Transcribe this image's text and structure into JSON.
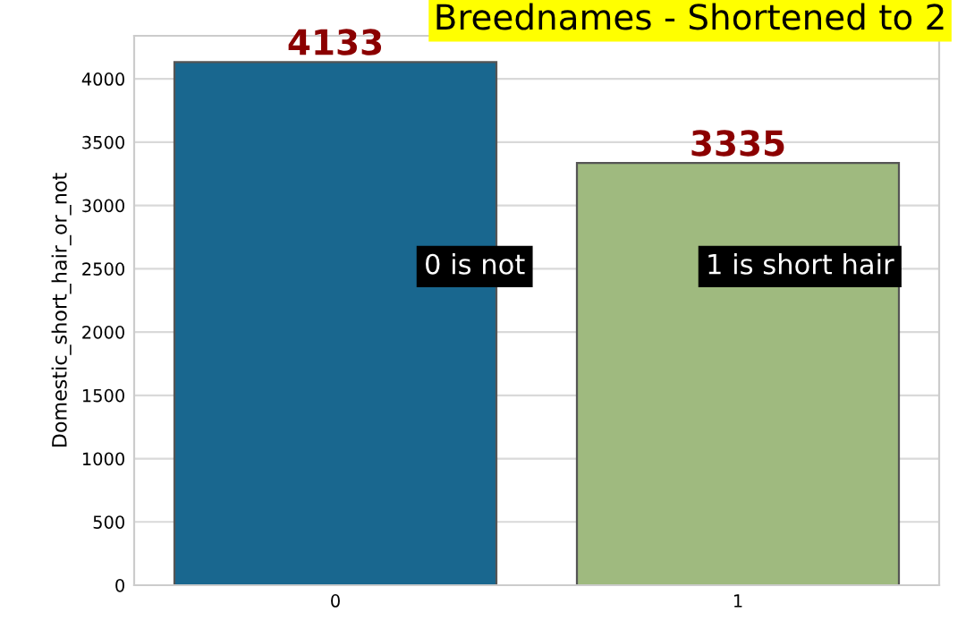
{
  "chart_data": {
    "type": "bar",
    "title": "Breednames - Shortened to 2",
    "ylabel": "Domestic_short_hair_or_not",
    "categories": [
      "0",
      "1"
    ],
    "values": [
      4133,
      3335
    ],
    "colors": [
      "#19678f",
      "#9fba7f"
    ],
    "ylim": [
      0,
      4340
    ],
    "yticks": [
      0,
      500,
      1000,
      1500,
      2000,
      2500,
      3000,
      3500,
      4000
    ],
    "grid": "y",
    "data_labels": true,
    "annotations": [
      "0 is not",
      "1 is short hair"
    ]
  }
}
